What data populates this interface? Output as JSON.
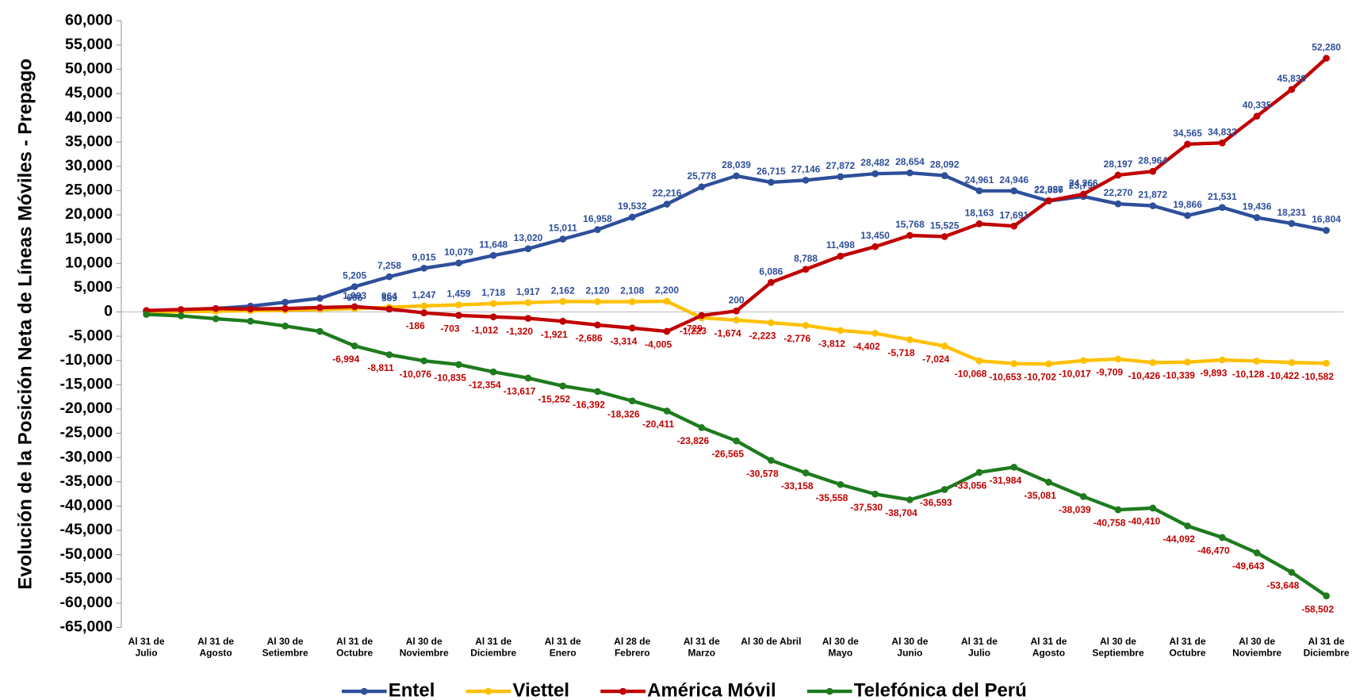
{
  "chart_data": {
    "type": "line",
    "y_label": "Evolución de la Posición Neta de Líneas Móviles - Prepago",
    "categories": [
      "Al 31 de\nJulio",
      null,
      "Al 31 de\nAgosto",
      null,
      "Al 30 de\nSetiembre",
      null,
      "Al 31 de\nOctubre",
      null,
      "Al 30 de\nNoviembre",
      null,
      "Al 31 de\nDiciembre",
      null,
      "Al 31 de\nEnero",
      null,
      "Al 28 de\nFebrero",
      null,
      "Al 31 de\nMarzo",
      null,
      "Al 30 de Abril",
      null,
      "Al 30 de\nMayo",
      null,
      "Al 30 de\nJunio",
      null,
      "Al 31 de\nJulio",
      null,
      "Al 31 de\nAgosto",
      null,
      "Al 30 de\nSeptiembre",
      null,
      "Al 31 de\nOctubre",
      null,
      "Al 30 de\nNoviembre",
      null,
      "Al 31 de\nDiciembre"
    ],
    "positive_label_color": "#2e4f9a",
    "negative_label_color": "#c00000",
    "series": [
      {
        "name": "Entel",
        "color": "#2e4f9a",
        "values": [
          0,
          300,
          700,
          1200,
          2000,
          2800,
          5205,
          7258,
          9015,
          10079,
          11648,
          13020,
          15011,
          16958,
          19532,
          22216,
          25778,
          28039,
          26715,
          27146,
          27872,
          28482,
          28654,
          28092,
          24961,
          24946,
          22857,
          23790,
          22270,
          21872,
          19866,
          21531,
          19436,
          18231,
          16804
        ],
        "value_labels": [
          null,
          null,
          null,
          null,
          null,
          null,
          "5,205",
          "7,258",
          "9,015",
          "10,079",
          "11,648",
          "13,020",
          "15,011",
          "16,958",
          "19,532",
          "22,216",
          "25,778",
          "28,039",
          "26,715",
          "27,146",
          "27,872",
          "28,482",
          "28,654",
          "28,092",
          "24,961",
          "24,946",
          "22,857",
          "23,790",
          "22,270",
          "21,872",
          "19,866",
          "21,531",
          "19,436",
          "18,231",
          "16,804"
        ]
      },
      {
        "name": "Viettel",
        "color": "#ffc000",
        "values": [
          0,
          50,
          150,
          250,
          350,
          500,
          696,
          964,
          1247,
          1459,
          1718,
          1917,
          2162,
          2120,
          2108,
          2200,
          -1223,
          -1674,
          -2223,
          -2776,
          -3812,
          -4402,
          -5718,
          -7024,
          -10068,
          -10653,
          -10702,
          -10017,
          -9709,
          -10426,
          -10339,
          -9893,
          -10128,
          -10422,
          -10582
        ],
        "value_labels": [
          null,
          null,
          null,
          null,
          null,
          null,
          "696",
          "964",
          "1,247",
          "1,459",
          "1,718",
          "1,917",
          "2,162",
          "2,120",
          "2,108",
          "2,200",
          "-1,223",
          "-1,674",
          "-2,223",
          "-2,776",
          "-3,812",
          "-4,402",
          "-5,718",
          "-7,024",
          "-10,068",
          "-10,653",
          "-10,702",
          "-10,017",
          "-9,709",
          "-10,426",
          "-10,339",
          "-9,893",
          "-10,128",
          "-10,422",
          "-10,582"
        ]
      },
      {
        "name": "América Móvil",
        "color": "#c00000",
        "values": [
          300,
          500,
          700,
          600,
          700,
          900,
          1093,
          589,
          -186,
          -703,
          -1012,
          -1320,
          -1921,
          -2686,
          -3314,
          -4005,
          -729,
          200,
          6086,
          8788,
          11498,
          13450,
          15768,
          15525,
          18163,
          17691,
          22926,
          24266,
          28197,
          28964,
          34565,
          34832,
          40335,
          45839,
          52280
        ],
        "value_labels": [
          null,
          null,
          null,
          null,
          null,
          null,
          "1,093",
          "589",
          "-186",
          "-703",
          "-1,012",
          "-1,320",
          "-1,921",
          "-2,686",
          "-3,314",
          "-4,005",
          "-729",
          "200",
          "6,086",
          "8,788",
          "11,498",
          "13,450",
          "15,768",
          "15,525",
          "18,163",
          "17,691",
          "22,926",
          "24,266",
          "28,197",
          "28,964",
          "34,565",
          "34,832",
          "40,335",
          "45,839",
          "52,280"
        ]
      },
      {
        "name": "Telefónica del Perú",
        "color": "#1e7b1e",
        "values": [
          -500,
          -800,
          -1400,
          -1900,
          -2900,
          -4000,
          -6994,
          -8811,
          -10076,
          -10835,
          -12354,
          -13617,
          -15252,
          -16392,
          -18326,
          -20411,
          -23826,
          -26565,
          -30578,
          -33158,
          -35558,
          -37530,
          -38704,
          -36593,
          -33056,
          -31984,
          -35081,
          -38039,
          -40758,
          -40410,
          -44092,
          -46470,
          -49643,
          -53648,
          -58502
        ],
        "value_labels": [
          null,
          null,
          null,
          null,
          null,
          null,
          "-6,994",
          "-8,811",
          "-10,076",
          "-10,835",
          "-12,354",
          "-13,617",
          "-15,252",
          "-16,392",
          "-18,326",
          "-20,411",
          "-23,826",
          "-26,565",
          "-30,578",
          "-33,158",
          "-35,558",
          "-37,530",
          "-38,704",
          "-36,593",
          "-33,056",
          "-31,984",
          "-35,081",
          "-38,039",
          "-40,758",
          "-40,410",
          "-44,092",
          "-46,470",
          "-49,643",
          "-53,648",
          "-58,502"
        ]
      }
    ],
    "ylim": [
      -65000,
      60000
    ],
    "yticks": [
      {
        "value": -65000,
        "label": "-65,000"
      },
      {
        "value": -60000,
        "label": "-60,000"
      },
      {
        "value": -55000,
        "label": "-55,000"
      },
      {
        "value": -50000,
        "label": "-50,000"
      },
      {
        "value": -45000,
        "label": "-45,000"
      },
      {
        "value": -40000,
        "label": "-40,000"
      },
      {
        "value": -35000,
        "label": "-35,000"
      },
      {
        "value": -30000,
        "label": "-30,000"
      },
      {
        "value": -25000,
        "label": "-25,000"
      },
      {
        "value": -20000,
        "label": "-20,000"
      },
      {
        "value": -15000,
        "label": "-15,000"
      },
      {
        "value": -10000,
        "label": "-10,000"
      },
      {
        "value": -5000,
        "label": "-5,000"
      },
      0,
      {
        "value": 5000,
        "label": "5,000"
      },
      {
        "value": 10000,
        "label": "10,000"
      },
      {
        "value": 15000,
        "label": "15,000"
      },
      {
        "value": 20000,
        "label": "20,000"
      },
      {
        "value": 25000,
        "label": "25,000"
      },
      {
        "value": 30000,
        "label": "30,000"
      },
      {
        "value": 35000,
        "label": "35,000"
      },
      {
        "value": 40000,
        "label": "40,000"
      },
      {
        "value": 45000,
        "label": "45,000"
      },
      {
        "value": 50000,
        "label": "50,000"
      },
      {
        "value": 55000,
        "label": "55,000"
      },
      {
        "value": 60000,
        "label": "60,000"
      }
    ],
    "legend": "bottom"
  }
}
